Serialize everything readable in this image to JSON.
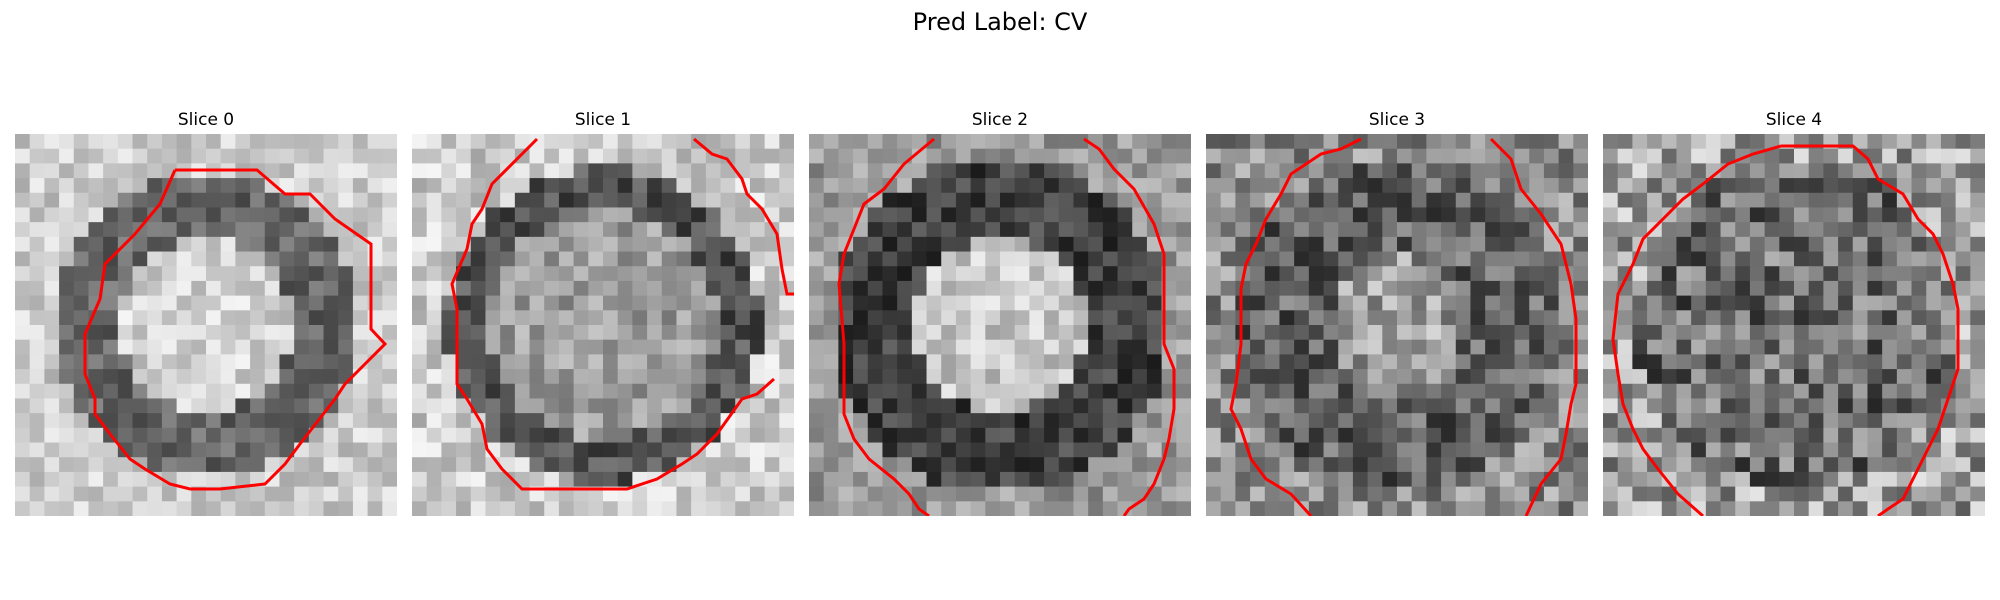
{
  "figure": {
    "title": "Pred Label: CV"
  },
  "panels": [
    {
      "title": "Slice 0",
      "pattern": "bright-center"
    },
    {
      "title": "Slice 1",
      "pattern": "ring-mid"
    },
    {
      "title": "Slice 2",
      "pattern": "bright-center-dark-ring"
    },
    {
      "title": "Slice 3",
      "pattern": "noisy-mid"
    },
    {
      "title": "Slice 4",
      "pattern": "noisy-dark"
    }
  ],
  "style": {
    "contour_color": "#ff0000",
    "colormap": "gray"
  }
}
